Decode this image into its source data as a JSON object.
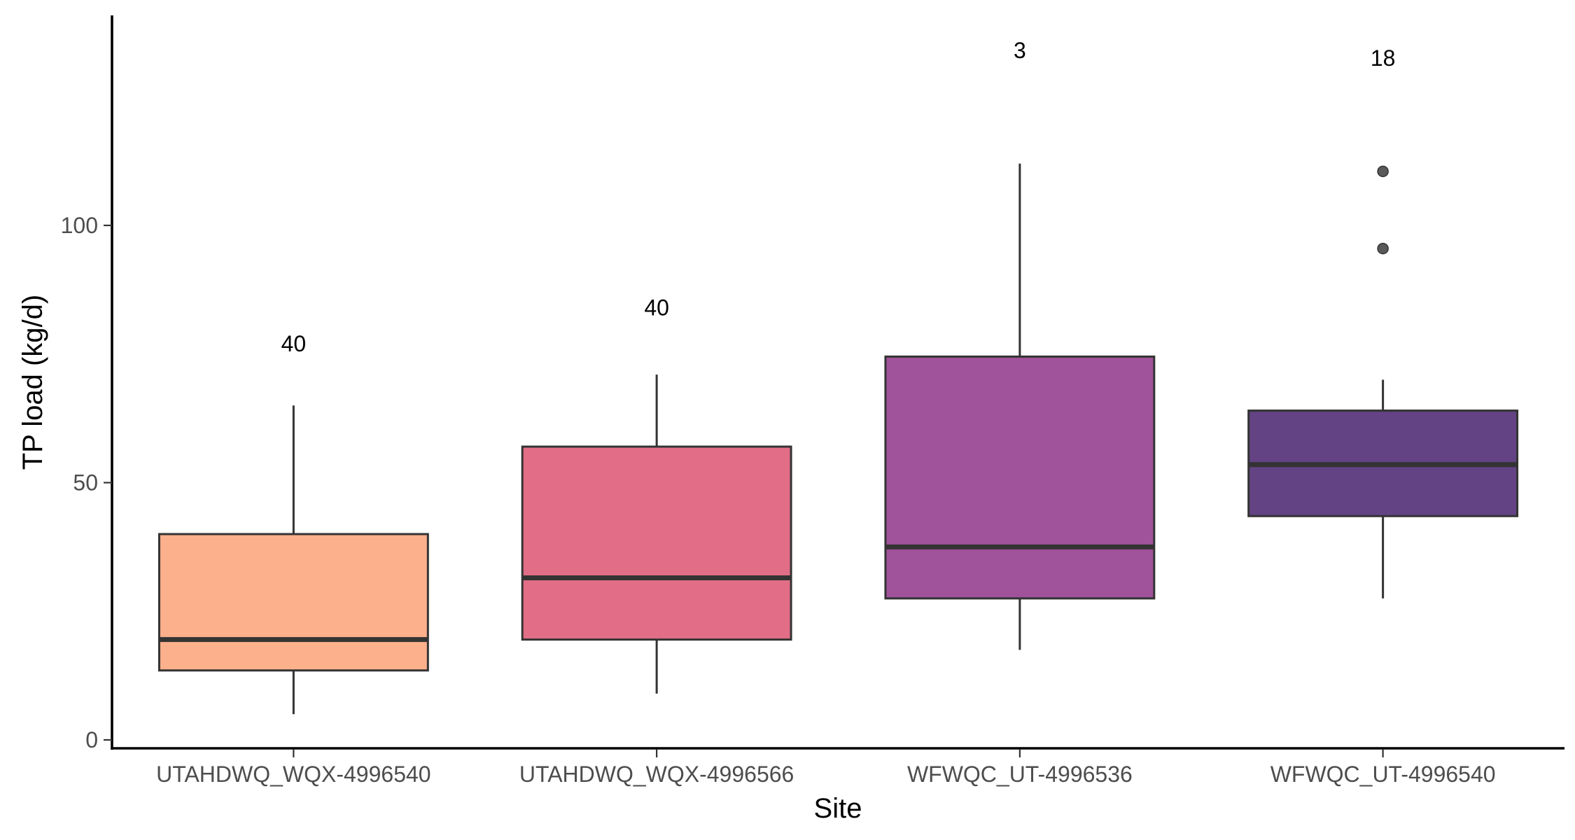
{
  "chart_data": {
    "type": "box",
    "xlabel": "Site",
    "ylabel": "TP load (kg/d)",
    "ylim": [
      -1.5,
      140
    ],
    "yticks": [
      0,
      50,
      100
    ],
    "grid": false,
    "legend": "none",
    "categories": [
      "UTAHDWQ_WQX-4996540",
      "UTAHDWQ_WQX-4996566",
      "WFWQC_UT-4996536",
      "WFWQC_UT-4996540"
    ],
    "boxes": [
      {
        "category": "UTAHDWQ_WQX-4996540",
        "min": 5,
        "q1": 13.5,
        "median": 19.5,
        "q3": 40,
        "max": 65,
        "outliers": [],
        "count_label": "40",
        "label_y": 77,
        "color": "#fcb08c"
      },
      {
        "category": "UTAHDWQ_WQX-4996566",
        "min": 9,
        "q1": 19.5,
        "median": 31.5,
        "q3": 57,
        "max": 71,
        "outliers": [],
        "count_label": "40",
        "label_y": 84,
        "color": "#e16e86"
      },
      {
        "category": "WFWQC_UT-4996536",
        "min": 17.5,
        "q1": 27.5,
        "median": 37.5,
        "q3": 74.5,
        "max": 112,
        "outliers": [],
        "count_label": "3",
        "label_y": 134,
        "color": "#a0529a"
      },
      {
        "category": "WFWQC_UT-4996540",
        "min": 27.5,
        "q1": 43.5,
        "median": 53.5,
        "q3": 64,
        "max": 70,
        "outliers": [
          95.5,
          110.5
        ],
        "count_label": "18",
        "label_y": 132.5,
        "color": "#634383"
      }
    ]
  }
}
